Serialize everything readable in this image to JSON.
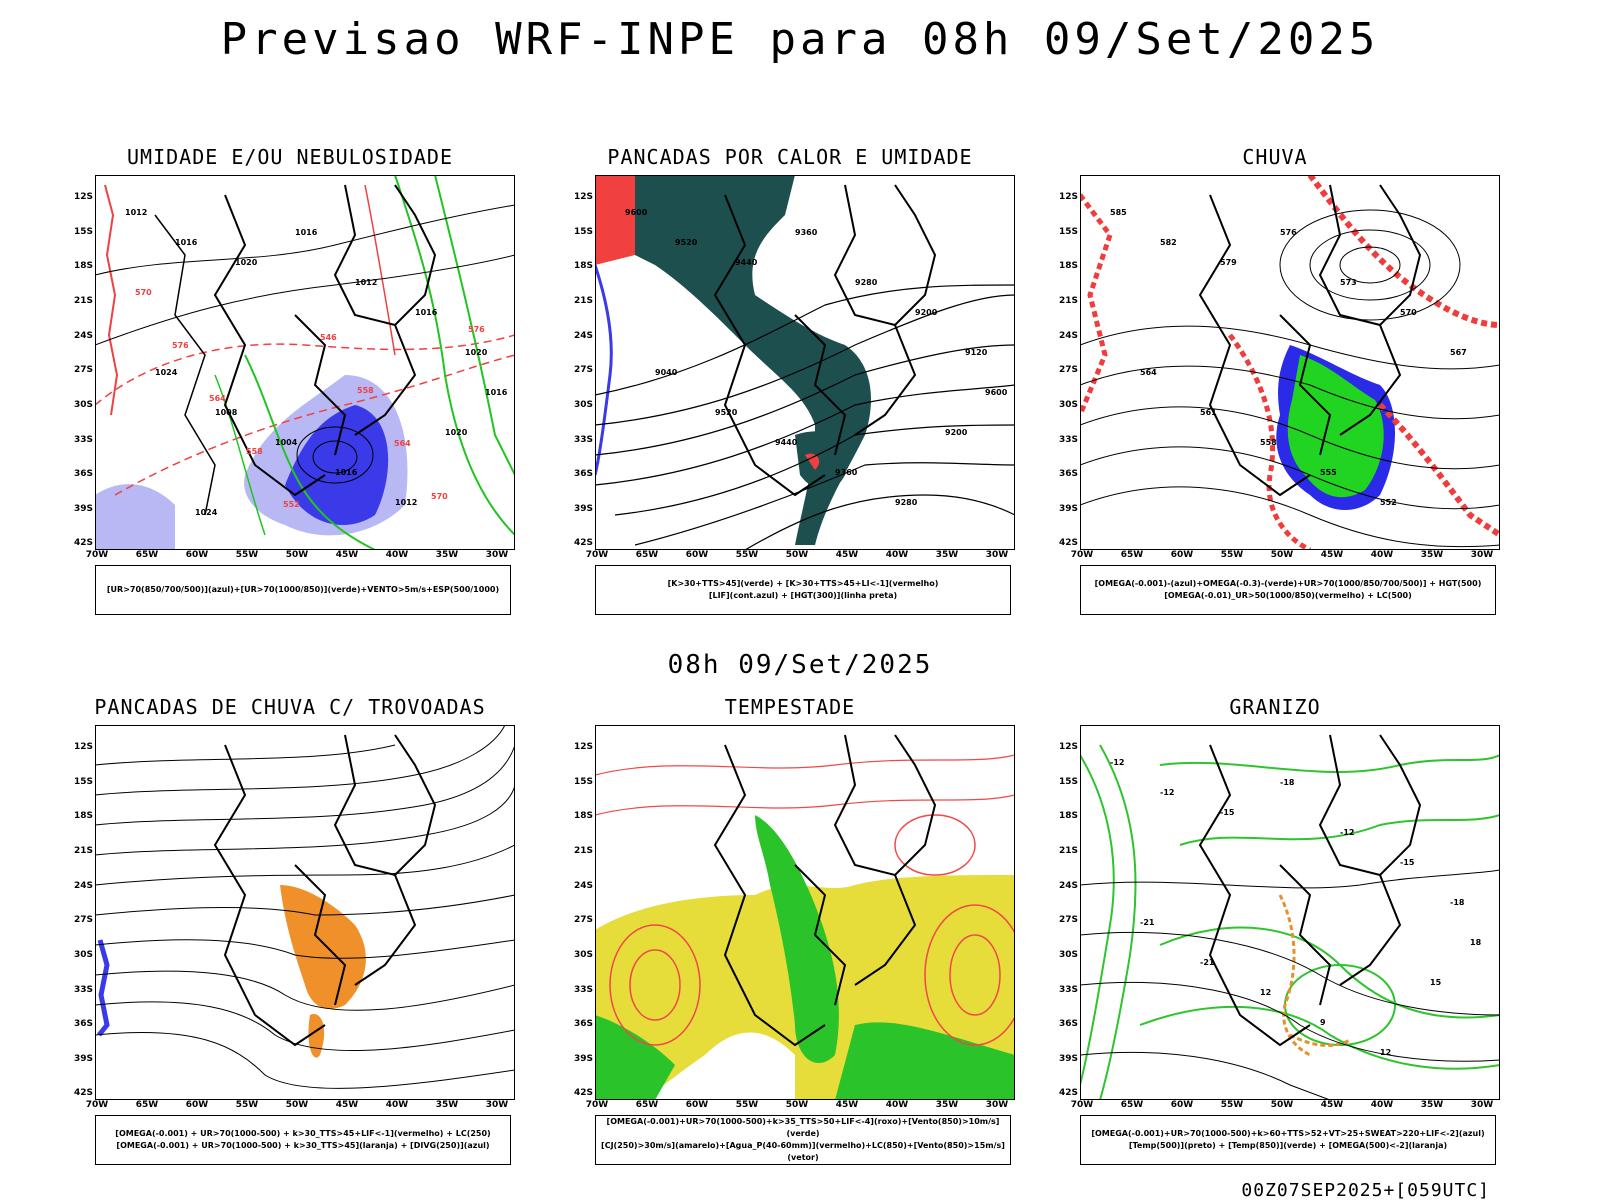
{
  "main_title": "Previsao WRF-INPE  para 08h 09/Set/2025",
  "mid_title": "08h 09/Set/2025",
  "footer": "00Z07SEP2025+[059UTC]",
  "axis": {
    "lat_labels": [
      "12S",
      "15S",
      "18S",
      "21S",
      "24S",
      "27S",
      "30S",
      "33S",
      "36S",
      "39S",
      "42S"
    ],
    "lon_labels": [
      "70W",
      "65W",
      "60W",
      "55W",
      "50W",
      "45W",
      "40W",
      "35W",
      "30W"
    ]
  },
  "panels": [
    {
      "title": "UMIDADE E/OU NEBULOSIDADE",
      "legend": [
        "[UR>70(850/700/500)](azul)+[UR>70(1000/850)](verde)+VENTO>5m/s+ESP(500/1000)"
      ],
      "contour_labels": [
        "1012",
        "1016",
        "1020",
        "1016",
        "1012",
        "1016",
        "1020",
        "1024",
        "1008",
        "1004",
        "1016",
        "1012",
        "1020",
        "1016",
        "1024"
      ],
      "red_labels": [
        "570",
        "576",
        "564",
        "558",
        "552",
        "546",
        "558",
        "564",
        "570",
        "576"
      ],
      "colors": {
        "blue": "#3a3ae8",
        "lightblue": "#b8b8f4",
        "green": "#22c422",
        "red": "#f04040"
      }
    },
    {
      "title": "PANCADAS POR CALOR E UMIDADE",
      "legend": [
        "[K>30+TTS>45](verde) + [K>30+TTS>45+LI<-1](vermelho)",
        "[LIF](cont.azul) + [HGT(300)](linha preta)"
      ],
      "contour_labels": [
        "9600",
        "9520",
        "9440",
        "9360",
        "9280",
        "9200",
        "9120",
        "9040",
        "9520",
        "9440",
        "9360",
        "9280",
        "9200",
        "9600"
      ],
      "colors": {
        "teal": "#1e4f4f",
        "red": "#f04040",
        "blue": "#3a3ae8"
      }
    },
    {
      "title": "CHUVA",
      "legend": [
        "[OMEGA(-0.001)-(azul)+OMEGA(-0.3)-(verde)+UR>70(1000/850/700/500)] + HGT(500)",
        "[OMEGA(-0.01)_UR>50(1000/850)(vermelho) + LC(500)"
      ],
      "contour_labels": [
        "585",
        "582",
        "579",
        "576",
        "573",
        "570",
        "567",
        "564",
        "561",
        "558",
        "555",
        "552"
      ],
      "colors": {
        "green": "#22d422",
        "blue": "#2a2ae8",
        "red": "#f03c3c"
      }
    },
    {
      "title": "PANCADAS DE CHUVA C/ TROVOADAS",
      "legend": [
        "[OMEGA(-0.001) + UR>70(1000-500) + k>30_TTS>45+LIF<-1](vermelho) + LC(250)",
        "[OMEGA(-0.001) + UR>70(1000-500) + k>30_TTS>45](laranja) + [DIVG(250)](azul)"
      ],
      "contour_labels": [],
      "colors": {
        "orange": "#f0902a",
        "blue": "#3a3ae8"
      }
    },
    {
      "title": "TEMPESTADE",
      "legend": [
        "[OMEGA(-0.001)+UR>70(1000-500)+k>35_TTS>50+LIF<-4](roxo)+[Vento(850)>10m/s](verde)",
        "[CJ(250)>30m/s](amarelo)+[Agua_P(40-60mm)](vermelho)+LC(850)+[Vento(850)>15m/s](vetor)"
      ],
      "contour_labels": [],
      "colors": {
        "yellow": "#e6dc3a",
        "green": "#2ac42a",
        "red": "#f04848"
      }
    },
    {
      "title": "GRANIZO",
      "legend": [
        "[OMEGA(-0.001)+UR>70(1000-500)+k>60+TTS>52+VT>25+SWEAT>220+LIF<-2](azul)",
        "[Temp(500)](preto) + [Temp(850)](verde) + [OMEGA(500)<-2](laranja)"
      ],
      "contour_labels": [
        "-12",
        "-12",
        "-15",
        "-18",
        "-12",
        "-15",
        "-18",
        "-21",
        "-21",
        "12",
        "9",
        "12",
        "15",
        "18"
      ],
      "colors": {
        "green": "#2ec42e",
        "orange": "#e8902e"
      }
    }
  ]
}
